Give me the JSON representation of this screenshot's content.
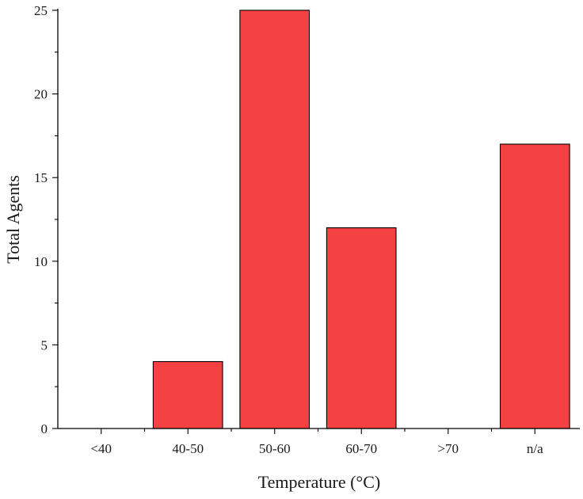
{
  "chart_data": {
    "type": "bar",
    "categories": [
      "<40",
      "40-50",
      "50-60",
      "60-70",
      ">70",
      "n/a"
    ],
    "values": [
      0,
      4,
      25,
      12,
      0,
      17
    ],
    "xlabel": "Temperature (°C)",
    "ylabel": "Total Agents",
    "ylim": [
      0,
      25
    ],
    "yticks": [
      "0",
      "5",
      "10",
      "15",
      "20",
      "25"
    ],
    "bar_color": "#f44141",
    "grid": false,
    "legend": "none"
  }
}
